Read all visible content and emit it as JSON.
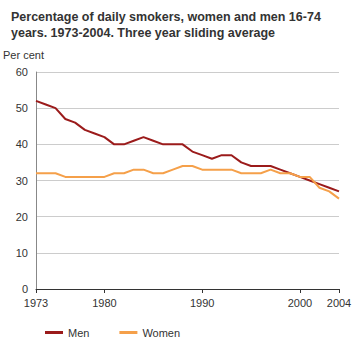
{
  "chart_data": {
    "type": "line",
    "title": "Percentage of daily smokers, women and men 16-74 years. 1973-2004. Three year sliding average",
    "y_label": "Per cent",
    "x": [
      1973,
      1974,
      1975,
      1976,
      1977,
      1978,
      1979,
      1980,
      1981,
      1982,
      1983,
      1984,
      1985,
      1986,
      1987,
      1988,
      1989,
      1990,
      1991,
      1992,
      1993,
      1994,
      1995,
      1996,
      1997,
      1998,
      1999,
      2000,
      2001,
      2002,
      2003,
      2004
    ],
    "series": [
      {
        "name": "Men",
        "color": "#9b1b1b",
        "values": [
          52,
          51,
          50,
          47,
          46,
          44,
          43,
          42,
          40,
          40,
          41,
          42,
          41,
          40,
          40,
          40,
          38,
          37,
          36,
          37,
          37,
          35,
          34,
          34,
          34,
          33,
          32,
          31,
          30,
          29,
          28,
          27
        ]
      },
      {
        "name": "Women",
        "color": "#f5a04a",
        "values": [
          32,
          32,
          32,
          31,
          31,
          31,
          31,
          31,
          32,
          32,
          33,
          33,
          32,
          32,
          33,
          34,
          34,
          33,
          33,
          33,
          33,
          32,
          32,
          32,
          33,
          32,
          32,
          31,
          31,
          28,
          27,
          25
        ]
      }
    ],
    "xlim": [
      1973,
      2004
    ],
    "xticks": [
      1973,
      1980,
      1990,
      2000,
      2004
    ],
    "ylim": [
      0,
      60
    ],
    "yticks": [
      0,
      10,
      20,
      30,
      40,
      50,
      60
    ],
    "grid": true,
    "legend": "bottom"
  }
}
